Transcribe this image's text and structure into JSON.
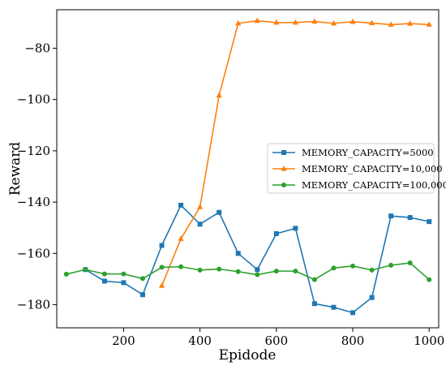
{
  "chart_data": {
    "type": "line",
    "title": "",
    "xlabel": "Epidode",
    "ylabel": "Reward",
    "xlim": [
      25,
      1025
    ],
    "ylim": [
      -189,
      -65
    ],
    "xticks": [
      200,
      400,
      600,
      800,
      1000
    ],
    "yticks": [
      -180,
      -160,
      -140,
      -120,
      -100,
      -80
    ],
    "xtick_labels": [
      "200",
      "400",
      "600",
      "800",
      "1000"
    ],
    "ytick_labels": [
      "−180",
      "−160",
      "−140",
      "−120",
      "−100",
      "−80"
    ],
    "grid": false,
    "legend_position": "center-right",
    "x": [
      50,
      100,
      150,
      200,
      250,
      300,
      350,
      400,
      450,
      500,
      550,
      600,
      650,
      700,
      750,
      800,
      850,
      900,
      950,
      1000
    ],
    "series": [
      {
        "name": "MEMORY_CAPACITY=5000",
        "color": "#1f77b4",
        "marker": "square",
        "x": [
          100,
          150,
          200,
          250,
          300,
          350,
          400,
          450,
          500,
          550,
          600,
          650,
          700,
          750,
          800,
          850,
          900,
          950,
          1000
        ],
        "values": [
          -166.3,
          -170.8,
          -171.4,
          -176.1,
          -156.9,
          -141.2,
          -148.6,
          -144.0,
          -160.0,
          -166.3,
          -152.3,
          -150.2,
          -179.6,
          -181.0,
          -183.1,
          -177.2,
          -145.4,
          -146.0,
          -147.6
        ]
      },
      {
        "name": "MEMORY_CAPACITY=10,000",
        "color": "#ff7f0e",
        "marker": "triangle",
        "x": [
          300,
          350,
          400,
          450,
          500,
          550,
          600,
          650,
          700,
          750,
          800,
          850,
          900,
          950,
          1000
        ],
        "values": [
          -172.6,
          -154.3,
          -141.9,
          -98.4,
          -70.3,
          -69.3,
          -70.0,
          -70.0,
          -69.6,
          -70.3,
          -69.7,
          -70.2,
          -70.8,
          -70.4,
          -70.8
        ]
      },
      {
        "name": "MEMORY_CAPACITY=100,000",
        "color": "#2ca02c",
        "marker": "circle",
        "x": [
          50,
          100,
          150,
          200,
          250,
          300,
          350,
          400,
          450,
          500,
          550,
          600,
          650,
          700,
          750,
          800,
          850,
          900,
          950,
          1000
        ],
        "values": [
          -168.1,
          -166.3,
          -168.0,
          -168.0,
          -169.8,
          -165.4,
          -165.2,
          -166.5,
          -166.1,
          -167.1,
          -168.3,
          -166.9,
          -166.9,
          -170.2,
          -165.7,
          -164.9,
          -166.5,
          -164.6,
          -163.7,
          -170.2
        ]
      }
    ]
  }
}
